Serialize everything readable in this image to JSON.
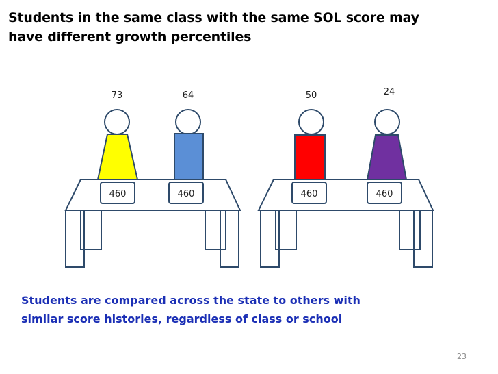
{
  "slide": {
    "title_line1": "Students in the same class with the same SOL score may",
    "title_line2": "have different growth percentiles",
    "note_line1": "Students are compared across the state to others with",
    "note_line2": "similar score histories, regardless of class or school",
    "page_number": "23"
  },
  "students": [
    {
      "percentile": "73",
      "sol_score": "460",
      "color": "#ffff00",
      "shape": "trapezoid"
    },
    {
      "percentile": "64",
      "sol_score": "460",
      "color": "#5b8fd6",
      "shape": "rectangle"
    },
    {
      "percentile": "50",
      "sol_score": "460",
      "color": "#ff0000",
      "shape": "rectangle"
    },
    {
      "percentile": "24",
      "sol_score": "460",
      "color": "#7030a0",
      "shape": "trapezoid"
    }
  ]
}
